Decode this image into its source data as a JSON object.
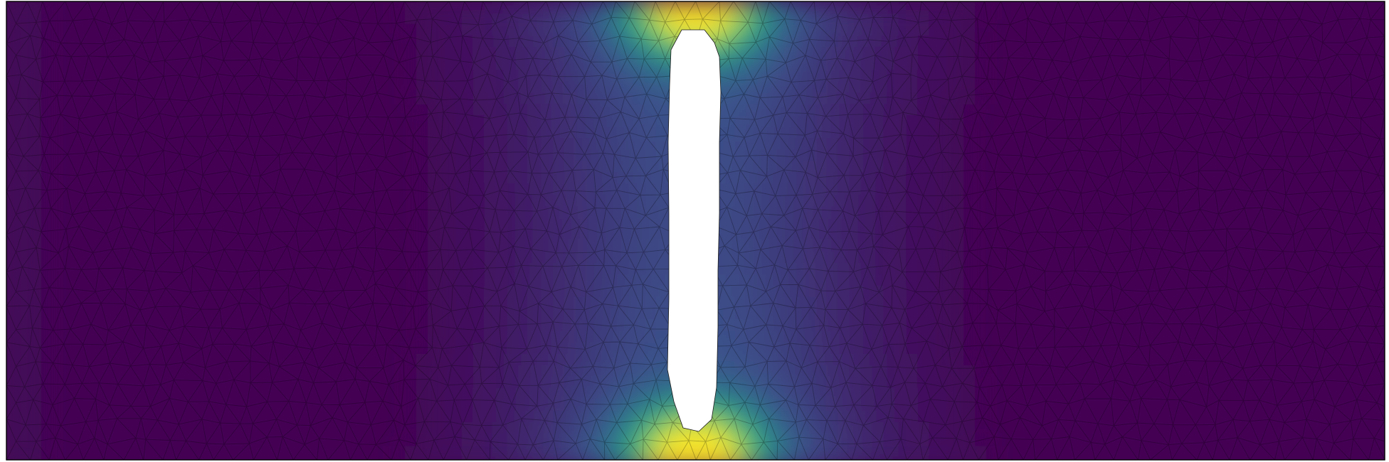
{
  "figure": {
    "kind": "finite-element stress field on a plate with a central vertical slot",
    "colormap": "viridis",
    "colormap_stops": [
      "#440154",
      "#3b528b",
      "#21918c",
      "#5ec962",
      "#fde725"
    ],
    "background_color": "#ffffff",
    "outline_color": "#000000",
    "mesh_line_color": "#000000",
    "hole_color": "#ffffff",
    "show_mesh": true,
    "mesh_type": "unstructured triangles"
  }
}
